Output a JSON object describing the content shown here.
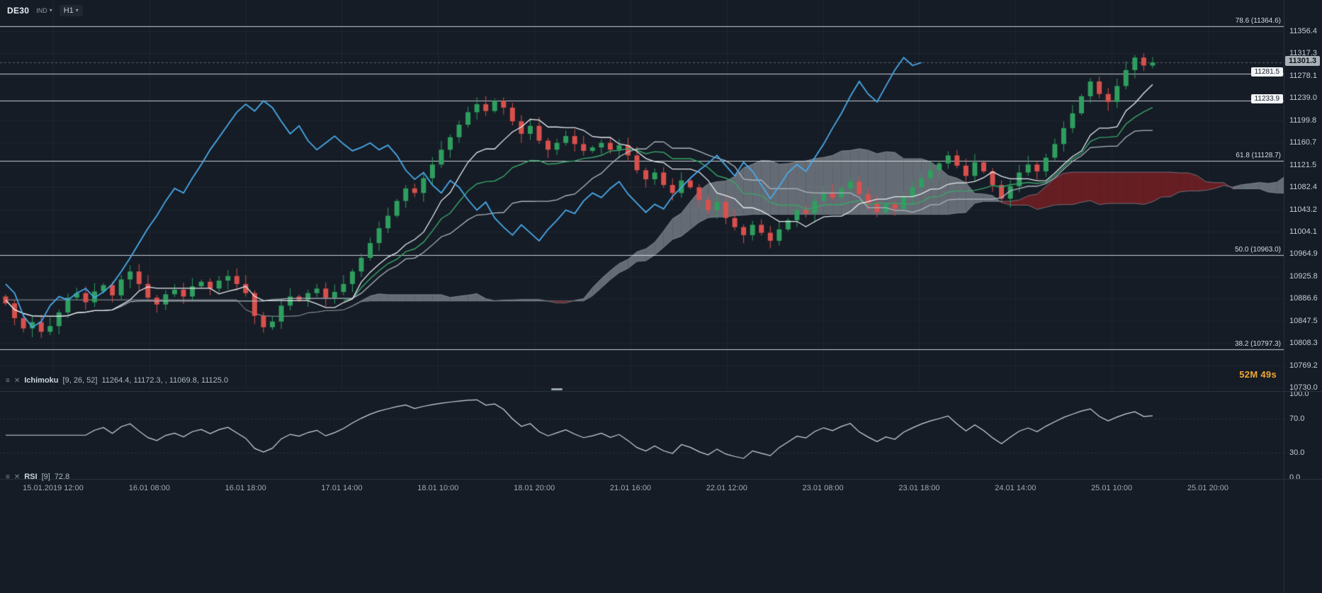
{
  "toolbar": {
    "symbol": "DE30",
    "instrument_type": "IND",
    "timeframe": "H1"
  },
  "price_axis": {
    "ticks": [
      "11356.4",
      "11317.3",
      "11278.1",
      "11239.0",
      "11199.8",
      "11160.7",
      "11121.5",
      "11082.4",
      "11043.2",
      "11004.1",
      "10964.9",
      "10925.8",
      "10886.6",
      "10847.5",
      "10808.3",
      "10769.2",
      "10730.0"
    ],
    "current_price": "11301.3"
  },
  "rsi_axis": [
    "100.0",
    "70.0",
    "30.0",
    "0.0"
  ],
  "time_axis": [
    "15.01.2019 12:00",
    "16.01 08:00",
    "16.01 18:00",
    "17.01 14:00",
    "18.01 10:00",
    "18.01 20:00",
    "21.01 16:00",
    "22.01 12:00",
    "23.01 08:00",
    "23.01 18:00",
    "24.01 14:00",
    "25.01 10:00",
    "25.01 20:00"
  ],
  "fib_labels": [
    {
      "label": "78.6 (11364.6)",
      "price": 11364.6
    },
    {
      "label": "61.8 (11128.7)",
      "price": 11128.7
    },
    {
      "label": "50.0 (10963.0)",
      "price": 10963.0
    },
    {
      "label": "38.2 (10797.3)",
      "price": 10797.3
    }
  ],
  "order_labels": [
    {
      "label": "11281.5",
      "price": 11281.5
    },
    {
      "label": "11233.9",
      "price": 11233.9
    }
  ],
  "countdown": {
    "minutes": "52M",
    "seconds": "49s"
  },
  "ichimoku_legend": {
    "name": "Ichimoku",
    "params": "[9, 26, 52]",
    "values": "11264.4,  11172.3,  ,  11069.8,  11125.0"
  },
  "rsi_legend": {
    "name": "RSI",
    "params": "[9]",
    "value": "72.8"
  },
  "chart_data": {
    "type": "candlestick",
    "symbol": "DE30",
    "timeframe": "H1",
    "y_range_top": 11411.2,
    "y_range_bottom": 10723.8,
    "first_open": 10890,
    "closes": [
      10878,
      10852,
      10834,
      10845,
      10828,
      10838,
      10862,
      10888,
      10896,
      10880,
      10899,
      10910,
      10892,
      10920,
      10934,
      10912,
      10888,
      10876,
      10894,
      10902,
      10890,
      10908,
      10916,
      10904,
      10918,
      10926,
      10912,
      10896,
      10856,
      10836,
      10846,
      10874,
      10890,
      10884,
      10896,
      10904,
      10888,
      10898,
      10912,
      10934,
      10958,
      10984,
      11010,
      11032,
      11058,
      11080,
      11072,
      11098,
      11122,
      11148,
      11170,
      11192,
      11214,
      11228,
      11216,
      11234,
      11222,
      11198,
      11176,
      11190,
      11164,
      11148,
      11160,
      11172,
      11158,
      11146,
      11152,
      11160,
      11148,
      11156,
      11138,
      11112,
      11096,
      11108,
      11086,
      11072,
      11094,
      11082,
      11060,
      11042,
      11056,
      11028,
      11012,
      10998,
      11016,
      11002,
      10988,
      11008,
      11024,
      11042,
      11036,
      11058,
      11072,
      11064,
      11080,
      11092,
      11070,
      11054,
      11038,
      11052,
      11044,
      11066,
      11082,
      11098,
      11112,
      11124,
      11138,
      11120,
      11102,
      11126,
      11110,
      11086,
      11062,
      11084,
      11108,
      11122,
      11110,
      11134,
      11158,
      11186,
      11212,
      11242,
      11268,
      11246,
      11232,
      11260,
      11288,
      11310,
      11296,
      11301.3
    ],
    "indicators": {
      "ichimoku": {
        "tenkan": 9,
        "kijun": 26,
        "senkou_b": 52,
        "displacement": 26,
        "current_values": {
          "tenkan": 11264.4,
          "kijun": 11172.3,
          "senkou_a": 11069.8,
          "senkou_b": 11125.0
        }
      },
      "rsi": {
        "period": 9,
        "current": 72.8
      }
    },
    "levels": {
      "fibonacci": [
        {
          "pct": 78.6,
          "price": 11364.6
        },
        {
          "pct": 61.8,
          "price": 11128.7
        },
        {
          "pct": 50.0,
          "price": 10963.0
        },
        {
          "pct": 38.2,
          "price": 10797.3
        }
      ],
      "horizontal_lines": [
        11281.5,
        11233.9
      ],
      "current_price": 11301.3
    },
    "colors": {
      "background": "#151c26",
      "candle_up": "#2f9e5f",
      "candle_down": "#d9504c",
      "chikou_line": "#49a9e8",
      "tenkan_line": "#e8ecef",
      "kijun_line": "#aeb6bf",
      "green_line": "#3aa568",
      "cloud_bullish": "rgba(150,157,164,0.62)",
      "cloud_bearish": "rgba(122,30,35,0.82)",
      "rsi_line": "#cfd6dd",
      "level_line": "rgba(232,237,242,0.85)",
      "countdown_text": "#efa733"
    }
  }
}
